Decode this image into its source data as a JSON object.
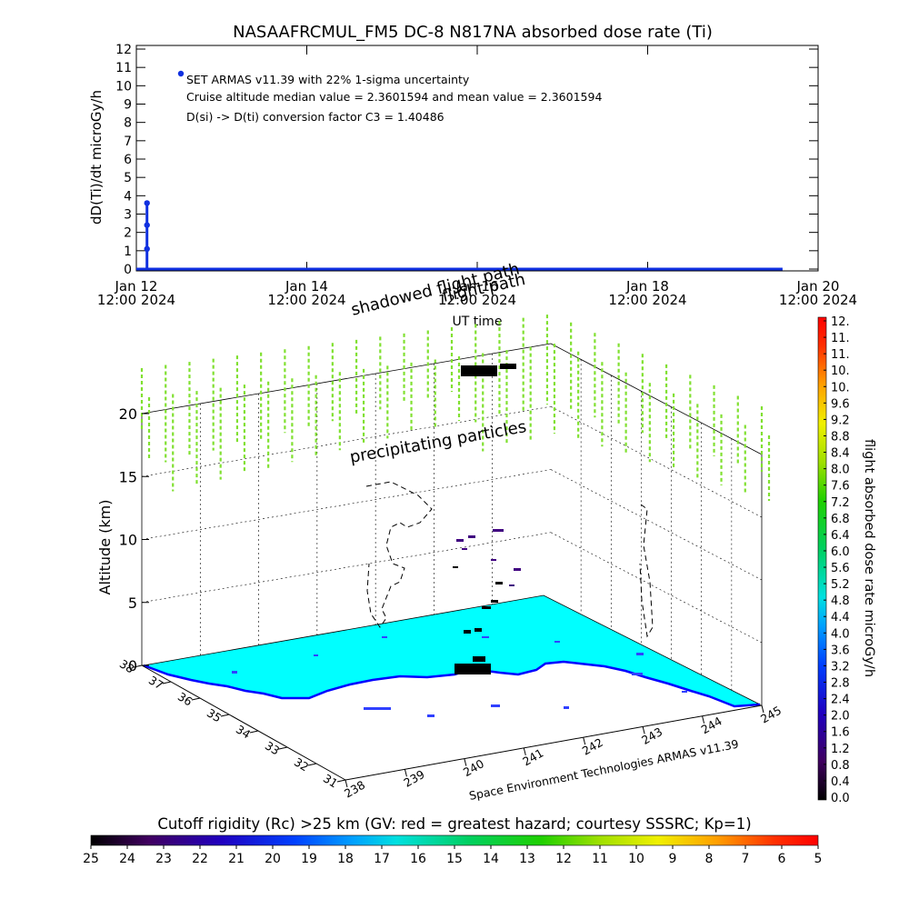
{
  "top_panel": {
    "title": "NASAAFRCMUL_FM5 DC-8   N817NA absorbed dose rate (Ti)",
    "ylabel": "dD(Ti)/dt microGy/h",
    "xlabel": "UT time",
    "annotations": [
      "SET ARMAS v11.39 with 22% 1-sigma uncertainty",
      "Cruise altitude median value = 2.3601594 and mean value = 2.3601594",
      "D(si) -> D(ti) conversion factor C3 = 1.40486"
    ],
    "overlay_text": [
      "shadowed flight path",
      "flight path"
    ]
  },
  "scene_panel": {
    "zlabel": "Altitude (km)",
    "z_ticks": [
      "0",
      "5",
      "10",
      "15",
      "20"
    ],
    "lat_ticks": [
      "38",
      "37",
      "36",
      "35",
      "34",
      "33",
      "32",
      "31"
    ],
    "lon_ticks": [
      "238",
      "239",
      "240",
      "241",
      "242",
      "243",
      "244",
      "245"
    ],
    "credit": "Space Environment Technologies ARMAS v11.39",
    "labels": [
      "precipitating particles"
    ]
  },
  "colorbar_right": {
    "label": "flight absorbed dose rate microGy/h",
    "ticks": [
      "12.",
      "11.",
      "11.",
      "10.",
      "10.",
      "9.6",
      "9.2",
      "8.8",
      "8.4",
      "8.0",
      "7.6",
      "7.2",
      "6.8",
      "6.4",
      "6.0",
      "5.6",
      "5.2",
      "4.8",
      "4.4",
      "4.0",
      "3.6",
      "3.2",
      "2.8",
      "2.4",
      "2.0",
      "1.6",
      "1.2",
      "0.8",
      "0.4",
      "0.0"
    ]
  },
  "colorbar_bottom": {
    "label": "Cutoff rigidity (Rc) >25 km (GV: red = greatest hazard; courtesy SSSRC; Kp=1)",
    "ticks": [
      "25",
      "24",
      "23",
      "22",
      "21",
      "20",
      "19",
      "18",
      "17",
      "16",
      "15",
      "14",
      "13",
      "12",
      "11",
      "10",
      "9",
      "8",
      "7",
      "6",
      "5"
    ]
  },
  "colors": {
    "series": "#1030e0",
    "ground": "#00ffff",
    "coast": "#0000ff",
    "precip": "#80e030"
  },
  "chart_data": [
    {
      "type": "line",
      "title": "NASAAFRCMUL_FM5 DC-8   N817NA absorbed dose rate (Ti)",
      "xlabel": "UT time",
      "ylabel": "dD(Ti)/dt microGy/h",
      "x_ticks": [
        {
          "value": "2024-01-12T12:00",
          "label": [
            "Jan 12",
            "12:00  2024"
          ]
        },
        {
          "value": "2024-01-14T12:00",
          "label": [
            "Jan 14",
            "12:00  2024"
          ]
        },
        {
          "value": "2024-01-16T12:00",
          "label": [
            "Jan 16",
            "12:00  2024"
          ]
        },
        {
          "value": "2024-01-18T12:00",
          "label": [
            "Jan 18",
            "12:00  2024"
          ]
        },
        {
          "value": "2024-01-20T12:00",
          "label": [
            "Jan 20",
            "12:00  2024"
          ]
        }
      ],
      "xlim": [
        "2024-01-12T12:00",
        "2024-01-20T12:00"
      ],
      "ylim": [
        0,
        12
      ],
      "y_ticks": [
        0,
        1,
        2,
        3,
        4,
        5,
        6,
        7,
        8,
        9,
        10,
        11,
        12
      ],
      "series": [
        {
          "points": [
            {
              "x": "2024-01-12T12:00",
              "y": 0
            },
            {
              "x": "2024-01-12T15:00",
              "y": 0
            },
            {
              "x": "2024-01-12T15:00",
              "y": 1.1
            },
            {
              "x": "2024-01-12T15:00",
              "y": 2.4
            },
            {
              "x": "2024-01-12T15:00",
              "y": 3.6
            },
            {
              "x": "2024-01-12T15:00",
              "y": 0
            },
            {
              "x": "2024-01-20T02:00",
              "y": 0
            }
          ],
          "markers": [
            {
              "x": "2024-01-12T15:00",
              "y": 1.1
            },
            {
              "x": "2024-01-12T15:00",
              "y": 2.4
            },
            {
              "x": "2024-01-12T15:00",
              "y": 3.6
            }
          ]
        }
      ],
      "legend_marker": "top-left"
    },
    {
      "type": "heatmap",
      "zlabel": "Altitude (km)",
      "zlim": [
        0,
        20
      ],
      "lat_range": [
        31,
        38
      ],
      "lon_range": [
        238,
        245
      ]
    }
  ]
}
